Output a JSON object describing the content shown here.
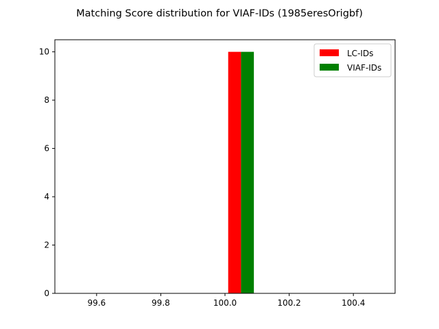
{
  "chart_data": {
    "type": "bar",
    "title": "Matching Score distribution for VIAF-IDs (1985eresOrigbf)",
    "xlabel": "",
    "ylabel": "",
    "xlim": [
      99.47,
      100.53
    ],
    "ylim": [
      0,
      10.5
    ],
    "x_ticks": [
      99.6,
      99.8,
      100.0,
      100.2,
      100.4
    ],
    "x_tick_labels": [
      "99.6",
      "99.8",
      "100.0",
      "100.2",
      "100.4"
    ],
    "y_ticks": [
      0,
      2,
      4,
      6,
      8,
      10
    ],
    "y_tick_labels": [
      "0",
      "2",
      "4",
      "6",
      "8",
      "10"
    ],
    "series": [
      {
        "name": "LC-IDs",
        "color": "#ff0000",
        "bars": [
          {
            "x0": 100.01,
            "x1": 100.05,
            "value": 10
          }
        ]
      },
      {
        "name": "VIAF-IDs",
        "color": "#008000",
        "bars": [
          {
            "x0": 100.05,
            "x1": 100.09,
            "value": 10
          }
        ]
      }
    ],
    "legend_position": "top-right",
    "grid": false
  }
}
